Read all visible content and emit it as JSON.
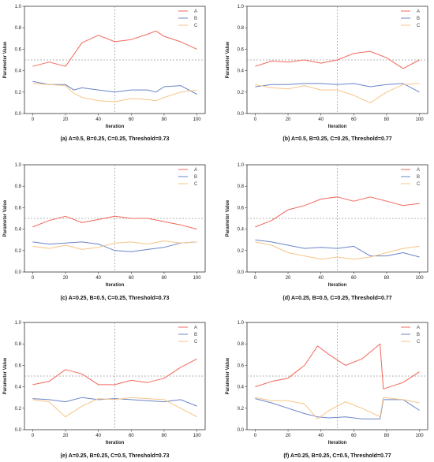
{
  "figure": {
    "ylabel": "Parameter Value",
    "xlabel": "Iteration"
  },
  "colors": {
    "A": "#f2675b",
    "B": "#6a84c8",
    "C": "#f6c587",
    "threshold": "#9a9a9a",
    "midline": "#9a9a9a"
  },
  "chart_data": [
    {
      "type": "line",
      "caption": "(a) A=0.5, B=0.25, C=0.25, Threshold=0.73",
      "xlabel": "Iteration",
      "ylabel": "Parameter Value",
      "xlim": [
        -5,
        105
      ],
      "ylim": [
        0,
        1.0
      ],
      "xticks": [
        0,
        20,
        40,
        60,
        80,
        100
      ],
      "yticks": [
        0.0,
        0.2,
        0.4,
        0.6,
        0.8,
        1.0
      ],
      "legend": [
        "A",
        "B",
        "C"
      ],
      "legend_position": "top-right",
      "reference_lines": {
        "horizontal": 0.5,
        "vertical": 50
      },
      "x": [
        0,
        10,
        20,
        25,
        30,
        40,
        50,
        60,
        70,
        75,
        80,
        90,
        100
      ],
      "series": [
        {
          "name": "A",
          "values": [
            0.44,
            0.48,
            0.44,
            0.55,
            0.66,
            0.73,
            0.67,
            0.69,
            0.74,
            0.77,
            0.72,
            0.67,
            0.6
          ]
        },
        {
          "name": "B",
          "values": [
            0.3,
            0.27,
            0.27,
            0.22,
            0.24,
            0.22,
            0.2,
            0.22,
            0.22,
            0.2,
            0.25,
            0.26,
            0.18
          ]
        },
        {
          "name": "C",
          "values": [
            0.28,
            0.27,
            0.26,
            0.19,
            0.15,
            0.12,
            0.11,
            0.14,
            0.13,
            0.12,
            0.15,
            0.2,
            0.22
          ]
        }
      ]
    },
    {
      "type": "line",
      "caption": "(b) A=0.5, B=0.25, C=0.25, Threshold=0.77",
      "xlabel": "Iteration",
      "ylabel": "Parameter Value",
      "xlim": [
        -5,
        105
      ],
      "ylim": [
        0,
        1.0
      ],
      "xticks": [
        0,
        20,
        40,
        60,
        80,
        100
      ],
      "yticks": [
        0.0,
        0.2,
        0.4,
        0.6,
        0.8,
        1.0
      ],
      "legend": [
        "A",
        "B",
        "C"
      ],
      "legend_position": "top-right",
      "reference_lines": {
        "horizontal": 0.5,
        "vertical": 50
      },
      "x": [
        0,
        10,
        20,
        30,
        40,
        50,
        60,
        70,
        80,
        90,
        100
      ],
      "series": [
        {
          "name": "A",
          "values": [
            0.44,
            0.49,
            0.48,
            0.5,
            0.47,
            0.5,
            0.56,
            0.58,
            0.52,
            0.42,
            0.5
          ]
        },
        {
          "name": "B",
          "values": [
            0.25,
            0.27,
            0.27,
            0.28,
            0.28,
            0.27,
            0.28,
            0.25,
            0.27,
            0.28,
            0.2
          ]
        },
        {
          "name": "C",
          "values": [
            0.27,
            0.24,
            0.23,
            0.26,
            0.22,
            0.22,
            0.17,
            0.1,
            0.2,
            0.27,
            0.28
          ]
        }
      ]
    },
    {
      "type": "line",
      "caption": "(c) A=0.25, B=0.5, C=0.25, Threshold=0.73",
      "xlabel": "Iteration",
      "ylabel": "Parameter Value",
      "xlim": [
        -5,
        105
      ],
      "ylim": [
        0,
        1.0
      ],
      "xticks": [
        0,
        20,
        40,
        60,
        80,
        100
      ],
      "yticks": [
        0.0,
        0.2,
        0.4,
        0.6,
        0.8,
        1.0
      ],
      "legend": [
        "A",
        "B",
        "C"
      ],
      "legend_position": "top-right",
      "reference_lines": {
        "horizontal": 0.5,
        "vertical": 50
      },
      "x": [
        0,
        10,
        20,
        30,
        40,
        50,
        60,
        70,
        80,
        90,
        100
      ],
      "series": [
        {
          "name": "A",
          "values": [
            0.42,
            0.48,
            0.52,
            0.46,
            0.49,
            0.52,
            0.5,
            0.5,
            0.47,
            0.44,
            0.4
          ]
        },
        {
          "name": "B",
          "values": [
            0.28,
            0.26,
            0.27,
            0.28,
            0.26,
            0.2,
            0.19,
            0.21,
            0.23,
            0.27,
            0.28
          ]
        },
        {
          "name": "C",
          "values": [
            0.24,
            0.22,
            0.25,
            0.21,
            0.23,
            0.27,
            0.28,
            0.26,
            0.29,
            0.27,
            0.28
          ]
        }
      ]
    },
    {
      "type": "line",
      "caption": "(d) A=0.25, B=0.5, C=0.25, Threshold=0.77",
      "xlabel": "Iteration",
      "ylabel": "Parameter Value",
      "xlim": [
        -5,
        105
      ],
      "ylim": [
        0,
        1.0
      ],
      "xticks": [
        0,
        20,
        40,
        60,
        80,
        100
      ],
      "yticks": [
        0.0,
        0.2,
        0.4,
        0.6,
        0.8,
        1.0
      ],
      "legend": [
        "A",
        "B",
        "C"
      ],
      "legend_position": "top-right",
      "reference_lines": {
        "horizontal": 0.5,
        "vertical": 50
      },
      "x": [
        0,
        10,
        20,
        30,
        40,
        50,
        60,
        70,
        80,
        90,
        100
      ],
      "series": [
        {
          "name": "A",
          "values": [
            0.42,
            0.48,
            0.58,
            0.62,
            0.68,
            0.7,
            0.66,
            0.7,
            0.66,
            0.62,
            0.64
          ]
        },
        {
          "name": "B",
          "values": [
            0.3,
            0.28,
            0.25,
            0.22,
            0.23,
            0.22,
            0.24,
            0.15,
            0.15,
            0.18,
            0.14
          ]
        },
        {
          "name": "C",
          "values": [
            0.28,
            0.25,
            0.18,
            0.15,
            0.12,
            0.14,
            0.12,
            0.14,
            0.18,
            0.22,
            0.24
          ]
        }
      ]
    },
    {
      "type": "line",
      "caption": "(e) A=0.25, B=0.25, C=0.5, Threshold=0.73",
      "xlabel": "Iteration",
      "ylabel": "Parameter Value",
      "xlim": [
        -5,
        105
      ],
      "ylim": [
        0,
        1.0
      ],
      "xticks": [
        0,
        20,
        40,
        60,
        80,
        100
      ],
      "yticks": [
        0.0,
        0.2,
        0.4,
        0.6,
        0.8,
        1.0
      ],
      "legend": [
        "A",
        "B",
        "C"
      ],
      "legend_position": "top-right",
      "reference_lines": {
        "horizontal": 0.5,
        "vertical": 50
      },
      "x": [
        0,
        10,
        20,
        30,
        40,
        50,
        60,
        70,
        80,
        90,
        100
      ],
      "series": [
        {
          "name": "A",
          "values": [
            0.42,
            0.45,
            0.56,
            0.52,
            0.42,
            0.42,
            0.46,
            0.44,
            0.48,
            0.58,
            0.66
          ]
        },
        {
          "name": "B",
          "values": [
            0.29,
            0.28,
            0.26,
            0.3,
            0.28,
            0.29,
            0.28,
            0.27,
            0.26,
            0.28,
            0.22
          ]
        },
        {
          "name": "C",
          "values": [
            0.28,
            0.26,
            0.12,
            0.22,
            0.29,
            0.28,
            0.3,
            0.29,
            0.28,
            0.2,
            0.12
          ]
        }
      ]
    },
    {
      "type": "line",
      "caption": "(f) A=0.25, B=0.25, C=0.5, Threshold=0.77",
      "xlabel": "Iteration",
      "ylabel": "Parameter Value",
      "xlim": [
        -5,
        105
      ],
      "ylim": [
        0,
        1.0
      ],
      "xticks": [
        0,
        20,
        40,
        60,
        80,
        100
      ],
      "yticks": [
        0.0,
        0.2,
        0.4,
        0.6,
        0.8,
        1.0
      ],
      "legend": [
        "A",
        "B",
        "C"
      ],
      "legend_position": "top-right",
      "reference_lines": {
        "horizontal": 0.5,
        "vertical": 50
      },
      "x": [
        0,
        10,
        20,
        30,
        38,
        45,
        55,
        65,
        76,
        78,
        90,
        100
      ],
      "series": [
        {
          "name": "A",
          "values": [
            0.4,
            0.45,
            0.48,
            0.6,
            0.78,
            0.7,
            0.6,
            0.66,
            0.8,
            0.38,
            0.44,
            0.54
          ]
        },
        {
          "name": "B",
          "values": [
            0.29,
            0.25,
            0.2,
            0.15,
            0.12,
            0.11,
            0.12,
            0.1,
            0.1,
            0.28,
            0.28,
            0.18
          ]
        },
        {
          "name": "C",
          "values": [
            0.3,
            0.27,
            0.27,
            0.24,
            0.1,
            0.18,
            0.26,
            0.2,
            0.12,
            0.3,
            0.28,
            0.25
          ]
        }
      ]
    }
  ]
}
